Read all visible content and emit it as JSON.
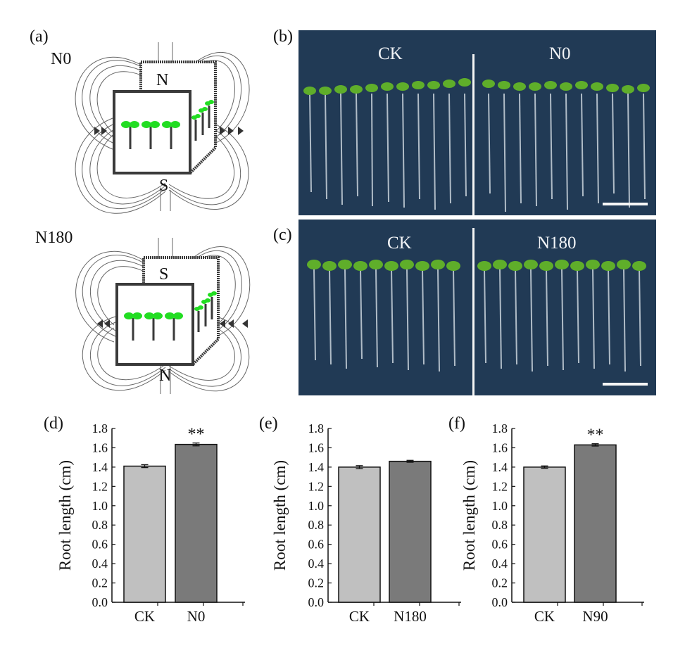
{
  "panel_labels": {
    "a": "(a)",
    "b": "(b)",
    "c": "(c)",
    "d": "(d)",
    "e": "(e)",
    "f": "(f)"
  },
  "schematic": {
    "top": {
      "title": "N0",
      "top_pole": "N",
      "bottom_pole": "S"
    },
    "bottom": {
      "title": "N180",
      "top_pole": "S",
      "bottom_pole": "N"
    },
    "seedling_color": "#22dd22"
  },
  "photos": {
    "b": {
      "left_label": "CK",
      "right_label": "N0"
    },
    "c": {
      "left_label": "CK",
      "right_label": "N180"
    },
    "background_color": "#213a55"
  },
  "colors": {
    "ck_bar": "#c0c0c0",
    "treatment_bar": "#7a7a7a"
  },
  "chart_data": [
    {
      "type": "bar",
      "categories": [
        "CK",
        "N0"
      ],
      "values": [
        1.41,
        1.635
      ],
      "errors": [
        0.015,
        0.015
      ],
      "annotations": [
        "",
        "**"
      ],
      "ylabel": "Root length (cm)",
      "ylim": [
        0,
        1.8
      ],
      "yticks": [
        "0.0",
        "0.2",
        "0.4",
        "0.6",
        "0.8",
        "1.0",
        "1.2",
        "1.4",
        "1.6",
        "1.8"
      ]
    },
    {
      "type": "bar",
      "categories": [
        "CK",
        "N180"
      ],
      "values": [
        1.4,
        1.46
      ],
      "errors": [
        0.015,
        0.01
      ],
      "annotations": [
        "",
        ""
      ],
      "ylabel": "Root length (cm)",
      "ylim": [
        0,
        1.8
      ],
      "yticks": [
        "0.0",
        "0.2",
        "0.4",
        "0.6",
        "0.8",
        "1.0",
        "1.2",
        "1.4",
        "1.6",
        "1.8"
      ]
    },
    {
      "type": "bar",
      "categories": [
        "CK",
        "N90"
      ],
      "values": [
        1.4,
        1.63
      ],
      "errors": [
        0.012,
        0.012
      ],
      "annotations": [
        "",
        "**"
      ],
      "ylabel": "Root length (cm)",
      "ylim": [
        0,
        1.8
      ],
      "yticks": [
        "0.0",
        "0.2",
        "0.4",
        "0.6",
        "0.8",
        "1.0",
        "1.2",
        "1.4",
        "1.6",
        "1.8"
      ]
    }
  ]
}
